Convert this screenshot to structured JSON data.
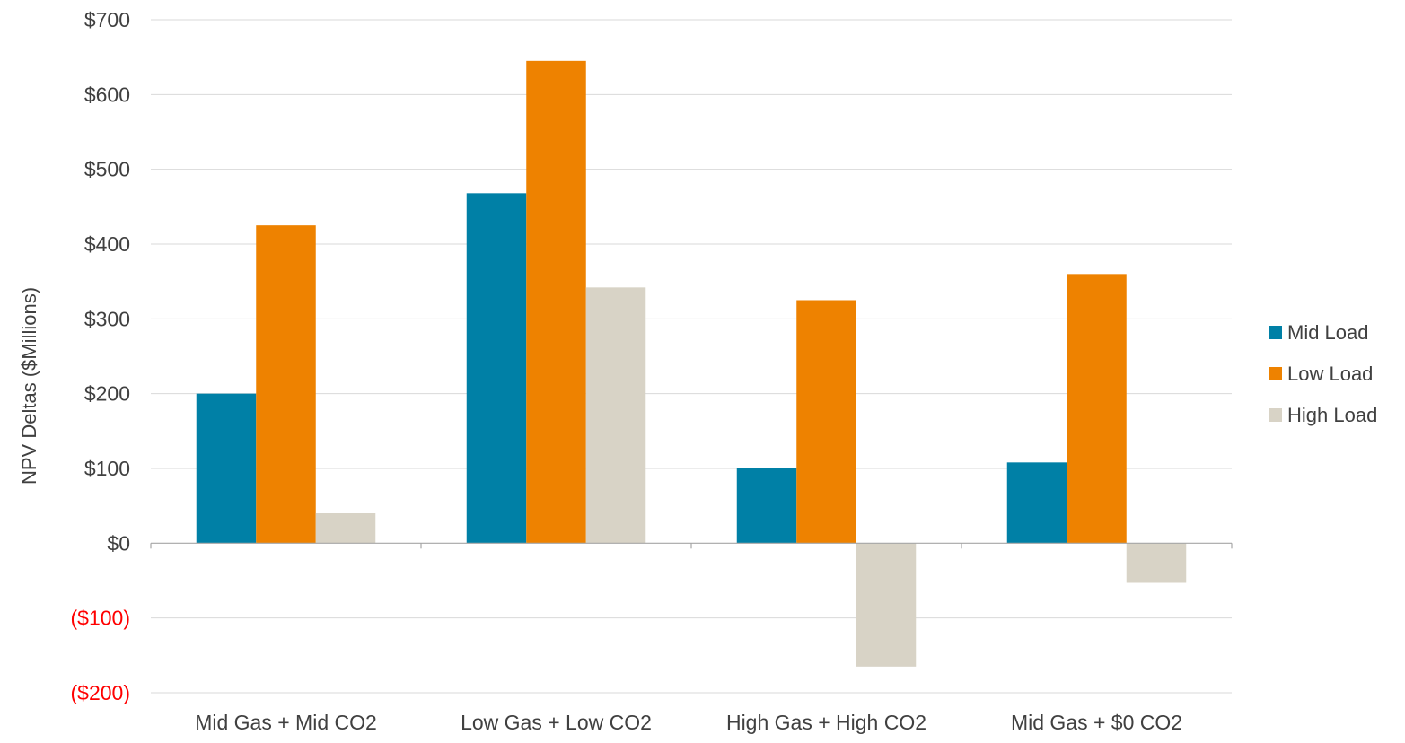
{
  "chart_data": {
    "type": "bar",
    "title": "",
    "xlabel": "",
    "ylabel": "NPV Deltas ($Millions)",
    "categories": [
      "Mid Gas + Mid CO2",
      "Low Gas + Low CO2",
      "High Gas + High CO2",
      "Mid Gas + $0 CO2"
    ],
    "series": [
      {
        "name": "Mid Load",
        "color": "#0080A6",
        "values": [
          200,
          468,
          100,
          108
        ]
      },
      {
        "name": "Low Load",
        "color": "#EE8200",
        "values": [
          425,
          645,
          325,
          360
        ]
      },
      {
        "name": "High Load",
        "color": "#D8D3C6",
        "values": [
          40,
          342,
          -165,
          -53
        ]
      }
    ],
    "ylim": [
      -200,
      700
    ],
    "yticks": [
      {
        "value": 700,
        "label": "$700",
        "color": "#404040"
      },
      {
        "value": 600,
        "label": "$600",
        "color": "#404040"
      },
      {
        "value": 500,
        "label": "$500",
        "color": "#404040"
      },
      {
        "value": 400,
        "label": "$400",
        "color": "#404040"
      },
      {
        "value": 300,
        "label": "$300",
        "color": "#404040"
      },
      {
        "value": 200,
        "label": "$200",
        "color": "#404040"
      },
      {
        "value": 100,
        "label": "$100",
        "color": "#404040"
      },
      {
        "value": 0,
        "label": "$0",
        "color": "#404040"
      },
      {
        "value": -100,
        "label": "($100)",
        "color": "#FF0000"
      },
      {
        "value": -200,
        "label": "($200)",
        "color": "#FF0000"
      }
    ],
    "grid": true,
    "legend_position": "right"
  }
}
